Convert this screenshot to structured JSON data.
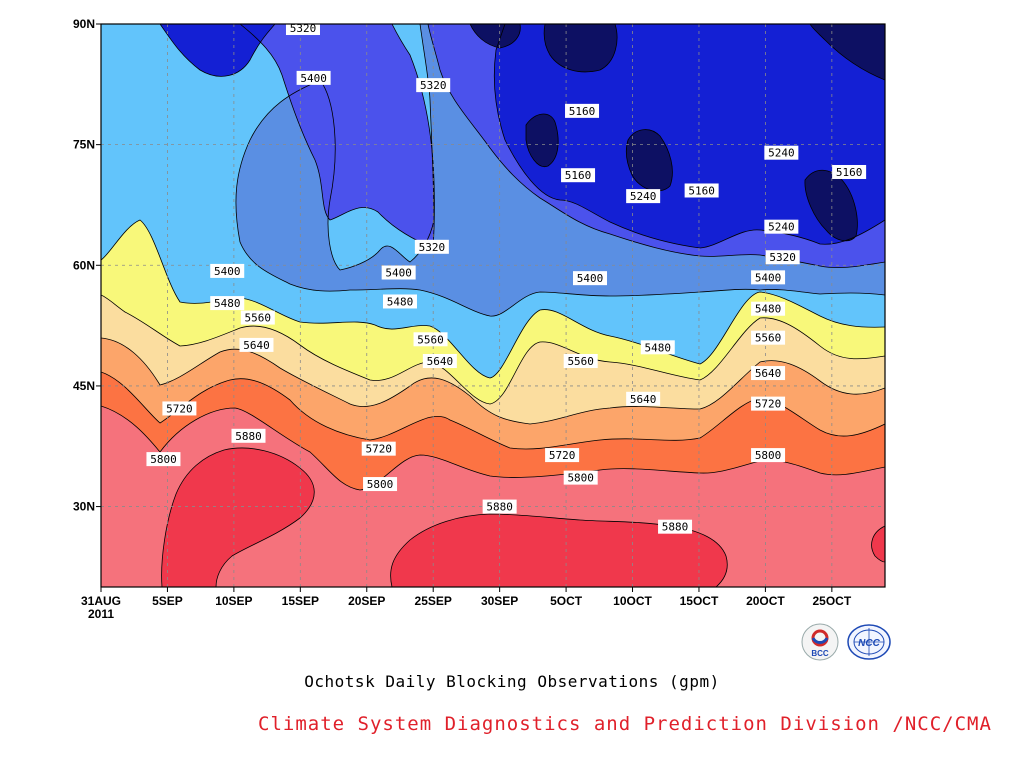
{
  "chart_data": {
    "type": "contour",
    "title": "Ochotsk Daily Blocking Observations (gpm)",
    "y_ticks": [
      "90N",
      "75N",
      "60N",
      "45N",
      "30N"
    ],
    "y_values": [
      90,
      75,
      60,
      45,
      30
    ],
    "ylim": [
      20,
      90
    ],
    "x_ticks": [
      "31AUG",
      "5SEP",
      "10SEP",
      "15SEP",
      "20SEP",
      "25SEP",
      "30SEP",
      "5OCT",
      "10OCT",
      "15OCT",
      "20OCT",
      "25OCT"
    ],
    "x_start_year": "2011",
    "x_days": [
      0,
      5,
      10,
      15,
      20,
      25,
      30,
      35,
      40,
      45,
      50,
      55
    ],
    "xlim": [
      0,
      59
    ],
    "levels": [
      5160,
      5240,
      5320,
      5400,
      5480,
      5560,
      5640,
      5720,
      5800,
      5880
    ],
    "level_colors": [
      "#0d1063",
      "#1420d4",
      "#4b52ec",
      "#5a8fe3",
      "#62c4fb",
      "#f8f87a",
      "#fbdd9f",
      "#fca56a",
      "#fc7343",
      "#f5727c",
      "#f0384c"
    ],
    "contour_labels": [
      {
        "text": "5320",
        "day": 15.2,
        "lat": 89.5
      },
      {
        "text": "5400",
        "day": 16.0,
        "lat": 83.3
      },
      {
        "text": "5320",
        "day": 25.0,
        "lat": 82.4
      },
      {
        "text": "5160",
        "day": 36.2,
        "lat": 79.2
      },
      {
        "text": "5240",
        "day": 51.2,
        "lat": 74.0
      },
      {
        "text": "5160",
        "day": 35.9,
        "lat": 71.2
      },
      {
        "text": "5240",
        "day": 40.8,
        "lat": 68.6
      },
      {
        "text": "5160",
        "day": 45.2,
        "lat": 69.3
      },
      {
        "text": "5160",
        "day": 56.3,
        "lat": 71.6
      },
      {
        "text": "5240",
        "day": 51.2,
        "lat": 64.8
      },
      {
        "text": "5320",
        "day": 51.3,
        "lat": 61.0
      },
      {
        "text": "5320",
        "day": 24.9,
        "lat": 62.3
      },
      {
        "text": "5400",
        "day": 9.5,
        "lat": 59.3
      },
      {
        "text": "5400",
        "day": 22.4,
        "lat": 59.1
      },
      {
        "text": "5400",
        "day": 36.8,
        "lat": 58.4
      },
      {
        "text": "5400",
        "day": 50.2,
        "lat": 58.5
      },
      {
        "text": "5480",
        "day": 9.5,
        "lat": 55.3
      },
      {
        "text": "5480",
        "day": 22.5,
        "lat": 55.5
      },
      {
        "text": "5480",
        "day": 50.2,
        "lat": 54.6
      },
      {
        "text": "5560",
        "day": 11.8,
        "lat": 53.5
      },
      {
        "text": "5560",
        "day": 24.8,
        "lat": 50.8
      },
      {
        "text": "5560",
        "day": 50.2,
        "lat": 51.0
      },
      {
        "text": "5480",
        "day": 41.9,
        "lat": 49.8
      },
      {
        "text": "5640",
        "day": 11.7,
        "lat": 50.1
      },
      {
        "text": "5560",
        "day": 36.1,
        "lat": 48.1
      },
      {
        "text": "5640",
        "day": 25.5,
        "lat": 48.1
      },
      {
        "text": "5640",
        "day": 50.2,
        "lat": 46.6
      },
      {
        "text": "5640",
        "day": 40.8,
        "lat": 43.4
      },
      {
        "text": "5720",
        "day": 50.2,
        "lat": 42.8
      },
      {
        "text": "5720",
        "day": 5.9,
        "lat": 42.2
      },
      {
        "text": "5880",
        "day": 11.1,
        "lat": 38.8
      },
      {
        "text": "5720",
        "day": 20.9,
        "lat": 37.2
      },
      {
        "text": "5720",
        "day": 34.7,
        "lat": 36.4
      },
      {
        "text": "5800",
        "day": 4.7,
        "lat": 35.9
      },
      {
        "text": "5800",
        "day": 50.2,
        "lat": 36.4
      },
      {
        "text": "5800",
        "day": 36.1,
        "lat": 33.6
      },
      {
        "text": "5800",
        "day": 21.0,
        "lat": 32.8
      },
      {
        "text": "5880",
        "day": 30.0,
        "lat": 30.0
      },
      {
        "text": "5880",
        "day": 43.2,
        "lat": 27.5
      }
    ]
  },
  "footer": "Climate System Diagnostics and Prediction Division /NCC/CMA",
  "logos": [
    "BCC",
    "NCC"
  ],
  "colors": {
    "footer": "#e0202a",
    "grid": "#8a8a8a"
  }
}
